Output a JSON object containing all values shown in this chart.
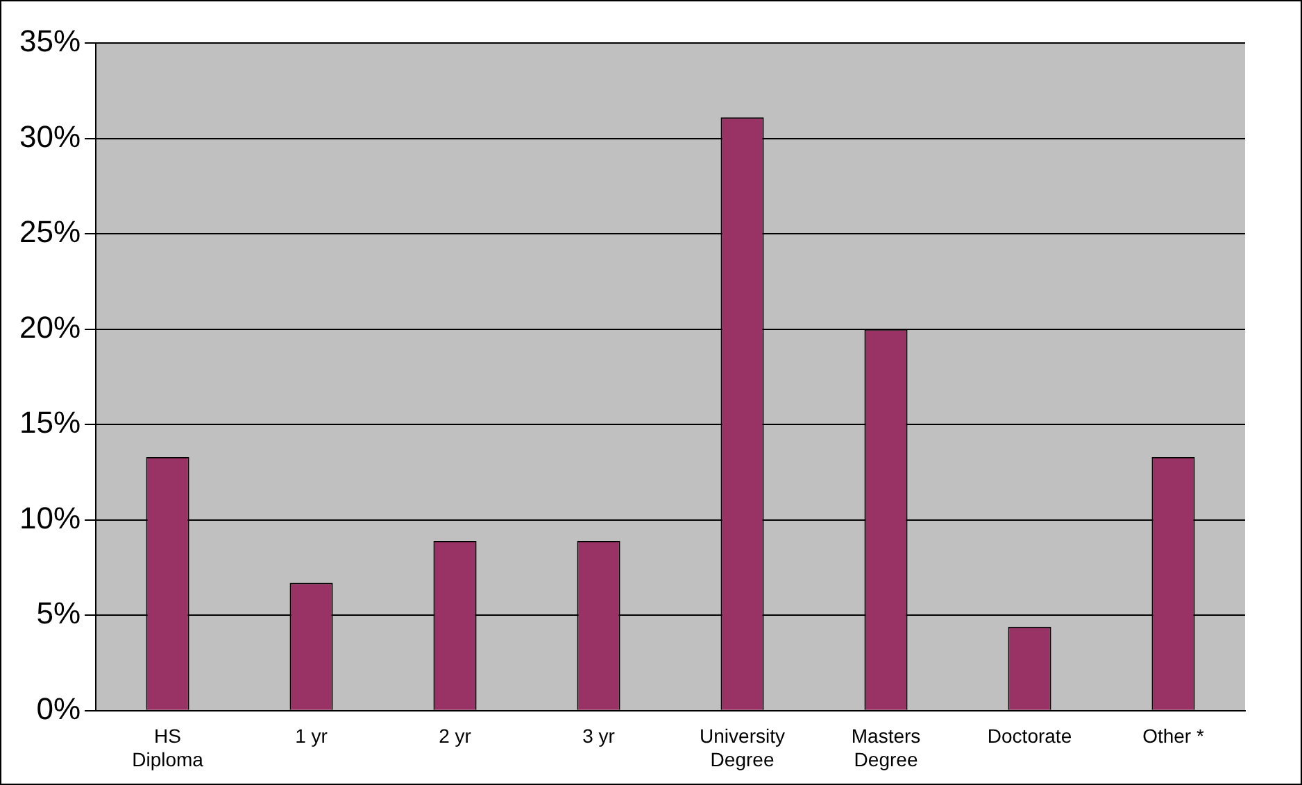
{
  "chart_data": {
    "type": "bar",
    "categories": [
      "HS Diploma",
      "1 yr",
      "2 yr",
      "3 yr",
      "University Degree",
      "Masters Degree",
      "Doctorate",
      "Other *"
    ],
    "values": [
      13.3,
      6.7,
      8.9,
      8.9,
      31.1,
      20,
      4.4,
      13.3
    ],
    "color": "#993366",
    "ylim": [
      0,
      35
    ],
    "yticks": [
      {
        "value": 0,
        "label": "0%"
      },
      {
        "value": 5,
        "label": "5%"
      },
      {
        "value": 10,
        "label": "10%"
      },
      {
        "value": 15,
        "label": "15%"
      },
      {
        "value": 20,
        "label": "20%"
      },
      {
        "value": 25,
        "label": "25%"
      },
      {
        "value": 30,
        "label": "30%"
      },
      {
        "value": 35,
        "label": "35%"
      }
    ],
    "grid": "y",
    "legend": false
  }
}
